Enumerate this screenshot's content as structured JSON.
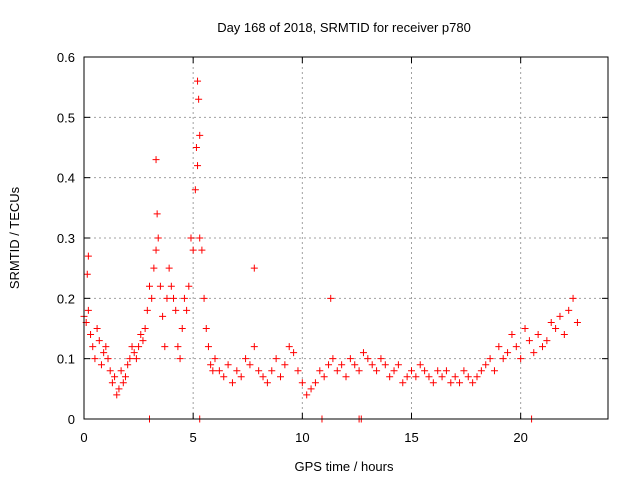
{
  "chart_data": {
    "type": "scatter",
    "title": "Day 168 of 2018, SRMTID for receiver p780",
    "xlabel": "GPS time / hours",
    "ylabel": "SRMTID / TECUs",
    "xlim": [
      0,
      24
    ],
    "ylim": [
      0,
      0.6
    ],
    "x_ticks": [
      0,
      5,
      10,
      15,
      20
    ],
    "y_ticks": [
      0,
      0.1,
      0.2,
      0.3,
      0.4,
      0.5,
      0.6
    ],
    "x_tick_labels": [
      "0",
      "5",
      "10",
      "15",
      "20"
    ],
    "y_tick_labels": [
      "0",
      "0.1",
      "0.2",
      "0.3",
      "0.4",
      "0.5",
      "0.6"
    ],
    "grid": true,
    "marker": "+",
    "series": [
      {
        "name": "SRMTID",
        "color": "#ff0000",
        "x": [
          0.0,
          0.1,
          0.2,
          0.3,
          0.4,
          0.5,
          0.6,
          0.7,
          0.8,
          0.9,
          1.0,
          1.1,
          1.2,
          1.3,
          1.4,
          1.5,
          1.6,
          1.7,
          1.8,
          1.9,
          2.0,
          2.1,
          2.2,
          2.3,
          2.4,
          2.5,
          2.6,
          2.7,
          2.8,
          2.9,
          3.0,
          3.1,
          3.2,
          3.3,
          3.4,
          3.5,
          3.6,
          3.7,
          3.8,
          3.9,
          4.0,
          4.1,
          4.2,
          4.3,
          4.4,
          4.5,
          4.6,
          4.7,
          4.8,
          4.9,
          5.0,
          5.1,
          5.2,
          5.3,
          5.4,
          5.5,
          5.6,
          5.7,
          5.8,
          5.9,
          6.0,
          6.2,
          6.4,
          6.6,
          6.8,
          7.0,
          7.2,
          7.4,
          7.6,
          7.8,
          8.0,
          8.2,
          8.4,
          8.6,
          8.8,
          9.0,
          9.2,
          9.4,
          9.6,
          9.8,
          10.0,
          10.2,
          10.4,
          10.6,
          10.8,
          11.0,
          11.2,
          11.4,
          11.6,
          11.8,
          12.0,
          12.2,
          12.4,
          12.6,
          12.8,
          13.0,
          13.2,
          13.4,
          13.6,
          13.8,
          14.0,
          14.2,
          14.4,
          14.6,
          14.8,
          15.0,
          15.2,
          15.4,
          15.6,
          15.8,
          16.0,
          16.2,
          16.4,
          16.6,
          16.8,
          17.0,
          17.2,
          17.4,
          17.6,
          17.8,
          18.0,
          18.2,
          18.4,
          18.6,
          18.8,
          19.0,
          19.2,
          19.4,
          19.6,
          19.8,
          20.0,
          20.2,
          20.4,
          20.6,
          20.8,
          21.0,
          21.2,
          21.4,
          21.6,
          21.8,
          22.0,
          22.2,
          22.4,
          22.6,
          3.3,
          3.35,
          5.2,
          5.25,
          5.3,
          5.15,
          7.8,
          11.3,
          0.2,
          0.15,
          3.0,
          5.3,
          10.9,
          12.6,
          12.7,
          20.5
        ],
        "y": [
          0.17,
          0.16,
          0.18,
          0.14,
          0.12,
          0.1,
          0.15,
          0.13,
          0.09,
          0.11,
          0.12,
          0.1,
          0.08,
          0.06,
          0.07,
          0.04,
          0.05,
          0.08,
          0.06,
          0.07,
          0.09,
          0.1,
          0.12,
          0.11,
          0.1,
          0.12,
          0.14,
          0.13,
          0.15,
          0.18,
          0.22,
          0.2,
          0.25,
          0.28,
          0.3,
          0.22,
          0.17,
          0.12,
          0.2,
          0.25,
          0.22,
          0.2,
          0.18,
          0.12,
          0.1,
          0.15,
          0.2,
          0.18,
          0.22,
          0.3,
          0.28,
          0.38,
          0.42,
          0.3,
          0.28,
          0.2,
          0.15,
          0.12,
          0.09,
          0.08,
          0.1,
          0.08,
          0.07,
          0.09,
          0.06,
          0.08,
          0.07,
          0.1,
          0.09,
          0.12,
          0.08,
          0.07,
          0.06,
          0.08,
          0.1,
          0.07,
          0.09,
          0.12,
          0.11,
          0.08,
          0.06,
          0.04,
          0.05,
          0.06,
          0.08,
          0.07,
          0.09,
          0.1,
          0.08,
          0.09,
          0.07,
          0.1,
          0.09,
          0.08,
          0.11,
          0.1,
          0.09,
          0.08,
          0.1,
          0.09,
          0.07,
          0.08,
          0.09,
          0.06,
          0.07,
          0.08,
          0.07,
          0.09,
          0.08,
          0.07,
          0.06,
          0.08,
          0.07,
          0.08,
          0.06,
          0.07,
          0.06,
          0.08,
          0.07,
          0.06,
          0.07,
          0.08,
          0.09,
          0.1,
          0.08,
          0.12,
          0.1,
          0.11,
          0.14,
          0.12,
          0.1,
          0.15,
          0.13,
          0.11,
          0.14,
          0.12,
          0.13,
          0.16,
          0.15,
          0.17,
          0.14,
          0.18,
          0.2,
          0.16,
          0.43,
          0.34,
          0.56,
          0.53,
          0.47,
          0.45,
          0.25,
          0.2,
          0.27,
          0.24,
          0.0,
          0.0,
          0.0,
          0.0,
          0.0,
          0.0
        ]
      }
    ]
  }
}
